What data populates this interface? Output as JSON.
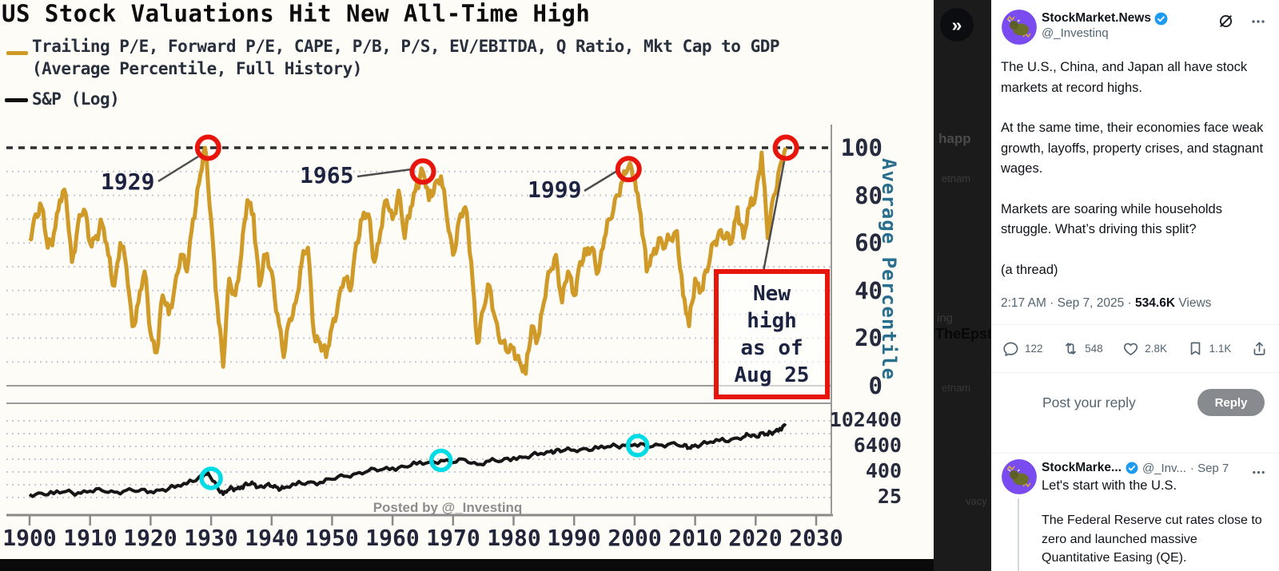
{
  "chart": {
    "legend_line1": "Trailing P/E, Forward P/E, CAPE, P/B, P/S, EV/EBITDA, Q Ratio, Mkt Cap to GDP",
    "legend_line2": "(Average Percentile, Full History)",
    "legend_sp": "S&P (Log)",
    "gold_color": "#cf9a28",
    "black_color": "#161616",
    "red_color": "#e8150d",
    "cyan_color": "#00dce6",
    "watermark": "Posted by @_Investinq",
    "ylabel": "Average Percentile",
    "new_high_lines": [
      "New",
      "high",
      "as of",
      "Aug 25"
    ]
  },
  "chart_data": [
    {
      "type": "line",
      "title": "US Stock Valuations Hit New All-Time High",
      "series_name": "Trailing P/E, Forward P/E, CAPE, P/B, P/S, EV/EBITDA, Q Ratio, Mkt Cap to GDP (Average Percentile, Full History)",
      "color": "#cf9a28",
      "ylabel": "Average Percentile",
      "ylim": [
        0,
        100
      ],
      "yticks": [
        0,
        20,
        40,
        60,
        80,
        100
      ],
      "xticks": [
        1900,
        1910,
        1920,
        1930,
        1940,
        1950,
        1960,
        1970,
        1980,
        1990,
        2000,
        2010,
        2020,
        2030
      ],
      "grid": "dotted horizontal, dashed reference line at 100",
      "x": [
        1900,
        1901,
        1902,
        1903,
        1904,
        1905,
        1906,
        1907,
        1908,
        1909,
        1910,
        1911,
        1912,
        1913,
        1914,
        1915,
        1916,
        1917,
        1918,
        1919,
        1920,
        1921,
        1922,
        1923,
        1924,
        1925,
        1926,
        1927,
        1928,
        1929,
        1930,
        1931,
        1932,
        1933,
        1934,
        1935,
        1936,
        1937,
        1938,
        1939,
        1940,
        1941,
        1942,
        1943,
        1944,
        1945,
        1946,
        1947,
        1948,
        1949,
        1950,
        1951,
        1952,
        1953,
        1954,
        1955,
        1956,
        1957,
        1958,
        1959,
        1960,
        1961,
        1962,
        1963,
        1964,
        1965,
        1966,
        1967,
        1968,
        1969,
        1970,
        1971,
        1972,
        1973,
        1974,
        1975,
        1976,
        1977,
        1978,
        1979,
        1980,
        1981,
        1982,
        1983,
        1984,
        1985,
        1986,
        1987,
        1988,
        1989,
        1990,
        1991,
        1992,
        1993,
        1994,
        1995,
        1996,
        1997,
        1998,
        1999,
        2000,
        2001,
        2002,
        2003,
        2004,
        2005,
        2006,
        2007,
        2008,
        2009,
        2010,
        2011,
        2012,
        2013,
        2014,
        2015,
        2016,
        2017,
        2018,
        2019,
        2020,
        2021,
        2022,
        2023,
        2024,
        2025
      ],
      "y": [
        62,
        72,
        75,
        58,
        64,
        78,
        80,
        52,
        68,
        74,
        60,
        63,
        68,
        55,
        42,
        60,
        50,
        25,
        35,
        48,
        22,
        14,
        38,
        30,
        42,
        55,
        48,
        70,
        85,
        100,
        70,
        35,
        8,
        45,
        38,
        55,
        78,
        72,
        42,
        55,
        48,
        30,
        12,
        28,
        35,
        52,
        58,
        22,
        18,
        12,
        25,
        35,
        45,
        40,
        60,
        70,
        72,
        52,
        65,
        78,
        70,
        82,
        62,
        75,
        85,
        90,
        78,
        85,
        88,
        70,
        55,
        70,
        75,
        52,
        18,
        32,
        42,
        28,
        18,
        14,
        16,
        10,
        5,
        25,
        20,
        35,
        48,
        55,
        35,
        48,
        38,
        52,
        55,
        58,
        48,
        62,
        70,
        80,
        86,
        92,
        88,
        72,
        48,
        55,
        62,
        58,
        62,
        65,
        38,
        25,
        45,
        40,
        48,
        60,
        65,
        62,
        60,
        75,
        62,
        75,
        80,
        98,
        62,
        80,
        92,
        100
      ],
      "annotations": [
        {
          "label": "1929",
          "year": 1929.5,
          "value": 100
        },
        {
          "label": "1965",
          "year": 1965,
          "value": 90
        },
        {
          "label": "1999",
          "year": 1999,
          "value": 91
        },
        {
          "label": "New high as of Aug 25",
          "year": 2025,
          "value": 100
        }
      ]
    },
    {
      "type": "line",
      "series_name": "S&P (Log)",
      "color": "#161616",
      "yscale": "log base 16",
      "yticks": [
        25,
        400,
        6400,
        102400
      ],
      "x": [
        1900,
        1902,
        1904,
        1906,
        1908,
        1910,
        1912,
        1914,
        1916,
        1918,
        1920,
        1922,
        1924,
        1926,
        1928,
        1929,
        1930,
        1931,
        1932,
        1933,
        1934,
        1935,
        1936,
        1937,
        1938,
        1939,
        1940,
        1941,
        1942,
        1944,
        1946,
        1948,
        1950,
        1952,
        1954,
        1956,
        1958,
        1960,
        1962,
        1964,
        1966,
        1968,
        1970,
        1972,
        1974,
        1976,
        1978,
        1980,
        1982,
        1984,
        1986,
        1987,
        1988,
        1990,
        1992,
        1994,
        1996,
        1998,
        2000,
        2002,
        2004,
        2006,
        2008,
        2009,
        2010,
        2012,
        2014,
        2016,
        2018,
        2019,
        2020,
        2021,
        2022,
        2023,
        2024,
        2025
      ],
      "y": [
        35,
        40,
        38,
        48,
        42,
        50,
        52,
        45,
        55,
        50,
        48,
        60,
        75,
        110,
        230,
        330,
        200,
        80,
        35,
        60,
        65,
        80,
        100,
        110,
        80,
        90,
        85,
        75,
        70,
        100,
        130,
        130,
        180,
        250,
        340,
        450,
        500,
        620,
        700,
        950,
        1150,
        1400,
        1100,
        1500,
        900,
        1300,
        1300,
        1900,
        2000,
        2600,
        3600,
        4300,
        3800,
        4300,
        5000,
        5300,
        6200,
        7500,
        8000,
        6000,
        7500,
        9000,
        6500,
        5500,
        7500,
        9000,
        12000,
        14000,
        18000,
        21000,
        19000,
        28000,
        22000,
        30000,
        45000,
        60000
      ],
      "markers": [
        {
          "year": 1930,
          "value": 200
        },
        {
          "year": 1968,
          "value": 1400
        },
        {
          "year": 2000.5,
          "value": 7000
        }
      ]
    }
  ],
  "overlay": {
    "collapse_icon": "»",
    "fragments": [
      "happ",
      "etnam",
      "ing",
      "TheEpst",
      "etnam",
      "vacy"
    ]
  },
  "tweet": {
    "name": "StockMarket.News",
    "handle": "@_Investinq",
    "body": [
      "The U.S., China, and Japan all have stock markets at record highs.",
      "At the same time, their economies face weak growth, layoffs, property crises, and stagnant wages.",
      "Markets are soaring while households struggle. What’s driving this split?",
      "(a thread)"
    ],
    "time_date": "2:17 AM · Sep 7, 2025 · ",
    "views_count": "534.6K",
    "views_label": " Views",
    "actions": {
      "replies": "122",
      "reposts": "548",
      "likes": "2.8K",
      "bookmarks": "1.1K"
    },
    "reply_prompt": "Post your reply",
    "reply_button": "Reply",
    "reply": {
      "name": "StockMarke...",
      "handle": "@_Inv...",
      "date": "· Sep 7",
      "line1": "Let's start with the U.S.",
      "para": "The Federal Reserve cut rates close to zero and launched massive Quantitative Easing (QE)."
    }
  }
}
